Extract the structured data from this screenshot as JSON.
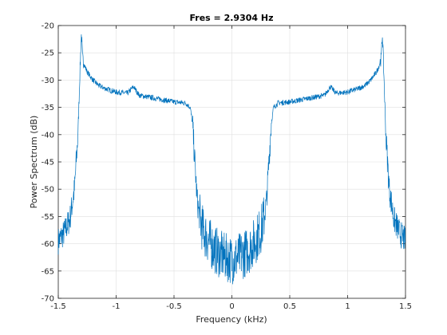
{
  "chart_data": {
    "type": "line",
    "title": "Fres = 2.9304 Hz",
    "xlabel": "Frequency (kHz)",
    "ylabel": "Power Spectrum (dB)",
    "xlim": [
      -1.5,
      1.5
    ],
    "ylim": [
      -70,
      -20
    ],
    "xticks": [
      -1.5,
      -1,
      -0.5,
      0,
      0.5,
      1,
      1.5
    ],
    "xtick_labels": [
      "-1.5",
      "-1",
      "-0.5",
      "0",
      "0.5",
      "1",
      "1.5"
    ],
    "yticks": [
      -70,
      -65,
      -60,
      -55,
      -50,
      -45,
      -40,
      -35,
      -30,
      -25,
      -20
    ],
    "ytick_labels": [
      "-70",
      "-65",
      "-60",
      "-55",
      "-50",
      "-45",
      "-40",
      "-35",
      "-30",
      "-25",
      "-20"
    ],
    "grid": true,
    "series": [
      {
        "color": "#0072bd",
        "x": [
          -1.5,
          -1.45,
          -1.4,
          -1.36,
          -1.33,
          -1.315,
          -1.305,
          -1.3,
          -1.29,
          -1.27,
          -1.25,
          -1.2,
          -1.15,
          -1.1,
          -1.0,
          -0.9,
          -0.85,
          -0.8,
          -0.7,
          -0.6,
          -0.5,
          -0.4,
          -0.36,
          -0.34,
          -0.32,
          -0.3,
          -0.28,
          -0.25,
          -0.2,
          -0.15,
          -0.1,
          -0.05,
          0.0,
          0.05,
          0.1,
          0.15,
          0.2,
          0.25,
          0.28,
          0.3,
          0.32,
          0.34,
          0.36,
          0.4,
          0.5,
          0.6,
          0.7,
          0.8,
          0.85,
          0.9,
          1.0,
          1.1,
          1.15,
          1.2,
          1.25,
          1.27,
          1.29,
          1.3,
          1.305,
          1.315,
          1.33,
          1.36,
          1.4,
          1.45,
          1.5
        ],
        "y": [
          -59.5,
          -58.0,
          -55.5,
          -50.0,
          -40.0,
          -30.0,
          -24.0,
          -21.5,
          -26.0,
          -27.5,
          -28.5,
          -30.0,
          -31.0,
          -31.5,
          -32.2,
          -32.4,
          -31.2,
          -32.8,
          -33.2,
          -33.6,
          -34.0,
          -34.2,
          -35.0,
          -38.0,
          -45.0,
          -52.0,
          -55.0,
          -57.5,
          -59.5,
          -61.0,
          -62.0,
          -62.5,
          -63.0,
          -62.5,
          -62.0,
          -61.0,
          -59.5,
          -57.5,
          -55.0,
          -52.0,
          -45.0,
          -38.0,
          -35.0,
          -34.2,
          -34.0,
          -33.6,
          -33.2,
          -32.8,
          -31.2,
          -32.4,
          -32.2,
          -31.5,
          -31.0,
          -30.0,
          -28.5,
          -27.5,
          -26.0,
          -21.5,
          -24.0,
          -30.0,
          -40.0,
          -50.0,
          -55.5,
          -58.0,
          -59.5
        ]
      }
    ]
  }
}
